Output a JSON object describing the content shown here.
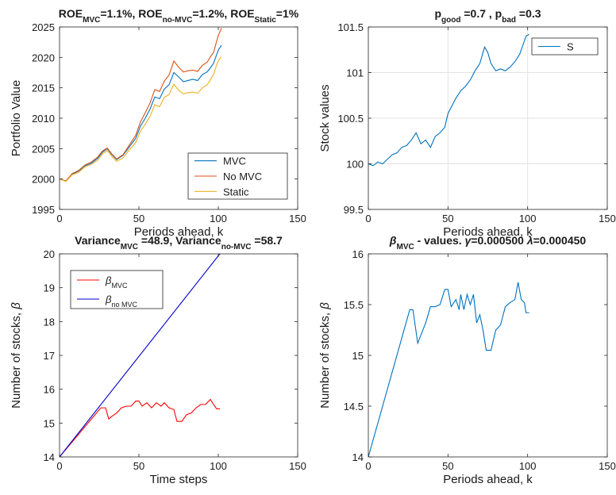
{
  "chart_data": [
    {
      "type": "line",
      "title": "ROE_MVC=1.1%, ROE_no-MVC=1.2%, ROE_Static=1%",
      "title_parts": [
        {
          "t": "ROE"
        },
        {
          "t": "MVC",
          "sub": true
        },
        {
          "t": "=1.1%, ROE"
        },
        {
          "t": "no-MVC",
          "sub": true
        },
        {
          "t": "=1.2%, ROE"
        },
        {
          "t": "Static",
          "sub": true
        },
        {
          "t": "=1%"
        }
      ],
      "xlabel": "Periods ahead, k",
      "ylabel": "Portfolio Value",
      "xlim": [
        0,
        150
      ],
      "ylim": [
        1995,
        2025
      ],
      "xticks": [
        0,
        50,
        100,
        150
      ],
      "yticks": [
        1995,
        2000,
        2005,
        2010,
        2015,
        2020,
        2025
      ],
      "grid": false,
      "legend_position": "bottom-right",
      "series": [
        {
          "name": "MVC",
          "color": "#0072BD",
          "x": [
            0,
            4,
            8,
            12,
            16,
            20,
            24,
            27,
            30,
            33,
            36,
            40,
            44,
            48,
            51,
            54,
            57,
            60,
            63,
            66,
            69,
            72,
            75,
            78,
            81,
            84,
            87,
            90,
            93,
            95,
            97,
            99,
            100,
            101,
            102
          ],
          "values": [
            2000,
            1999.7,
            2000.8,
            2001.3,
            2002.2,
            2002.6,
            2003.4,
            2004.4,
            2005,
            2004,
            2003.2,
            2003.9,
            2005.3,
            2006.7,
            2008.7,
            2010,
            2011.5,
            2013.5,
            2013.2,
            2014.8,
            2015.5,
            2017.5,
            2016.8,
            2016,
            2016.2,
            2016.4,
            2016.2,
            2017.2,
            2017.6,
            2018.3,
            2019,
            2020.5,
            2021.2,
            2021.6,
            2022
          ]
        },
        {
          "name": "No MVC",
          "color": "#D95319",
          "x": [
            0,
            4,
            8,
            12,
            16,
            20,
            24,
            27,
            30,
            33,
            36,
            40,
            44,
            48,
            51,
            54,
            57,
            60,
            63,
            66,
            69,
            72,
            75,
            78,
            81,
            84,
            87,
            90,
            93,
            95,
            97,
            99,
            100,
            101,
            102
          ],
          "values": [
            2000,
            1999.7,
            2000.9,
            2001.4,
            2002.3,
            2002.8,
            2003.6,
            2004.6,
            2005.1,
            2004.1,
            2003.3,
            2004,
            2005.6,
            2007.2,
            2009.4,
            2010.9,
            2012.5,
            2014.7,
            2014.4,
            2016.1,
            2017.1,
            2019.4,
            2018.4,
            2017.6,
            2017.8,
            2017.9,
            2017.7,
            2018.7,
            2019.2,
            2020.1,
            2020.8,
            2022.7,
            2023.6,
            2024.2,
            2024.8
          ]
        },
        {
          "name": "Static",
          "color": "#EDB120",
          "x": [
            0,
            4,
            8,
            12,
            16,
            20,
            24,
            27,
            30,
            33,
            36,
            40,
            44,
            48,
            51,
            54,
            57,
            60,
            63,
            66,
            69,
            72,
            75,
            78,
            81,
            84,
            87,
            90,
            93,
            95,
            97,
            99,
            100,
            101,
            102
          ],
          "values": [
            2000,
            1999.6,
            2000.7,
            2001.1,
            2002,
            2002.4,
            2003.1,
            2004.1,
            2004.7,
            2003.7,
            2002.9,
            2003.5,
            2004.8,
            2006,
            2007.9,
            2009,
            2010.3,
            2012.2,
            2011.9,
            2013.4,
            2013.9,
            2015.6,
            2014.6,
            2014,
            2014.2,
            2014.3,
            2014.1,
            2015,
            2015.5,
            2016.3,
            2017.2,
            2018.8,
            2019.4,
            2019.8,
            2020.1
          ]
        }
      ]
    },
    {
      "type": "line",
      "title": "p_good =0.7 , p_bad =0.3",
      "title_parts": [
        {
          "t": "p"
        },
        {
          "t": "good",
          "sub": true
        },
        {
          "t": " =0.7 , p"
        },
        {
          "t": "bad",
          "sub": true
        },
        {
          "t": " =0.3"
        }
      ],
      "xlabel": "Periods ahead, k",
      "ylabel": "Stock values",
      "xlim": [
        0,
        150
      ],
      "ylim": [
        99.5,
        101.5
      ],
      "xticks": [
        0,
        50,
        100,
        150
      ],
      "yticks": [
        99.5,
        100,
        100.5,
        101,
        101.5
      ],
      "grid": true,
      "legend_position": "top-right",
      "series": [
        {
          "name": "S",
          "color": "#0072BD",
          "x": [
            0,
            3,
            6,
            9,
            12,
            15,
            18,
            21,
            24,
            27,
            30,
            33,
            36,
            39,
            42,
            45,
            48,
            50,
            52,
            55,
            58,
            61,
            64,
            67,
            70,
            73,
            75,
            77,
            80,
            83,
            86,
            89,
            92,
            95,
            97,
            99,
            101
          ],
          "values": [
            100,
            99.98,
            100.02,
            100,
            100.05,
            100.1,
            100.12,
            100.18,
            100.2,
            100.26,
            100.34,
            100.22,
            100.26,
            100.18,
            100.3,
            100.34,
            100.4,
            100.55,
            100.62,
            100.72,
            100.8,
            100.85,
            100.92,
            101.02,
            101.1,
            101.28,
            101.22,
            101.1,
            101.02,
            101.04,
            101.02,
            101.06,
            101.12,
            101.2,
            101.3,
            101.4,
            101.42
          ]
        }
      ]
    },
    {
      "type": "line",
      "title": "Variance_MVC =48.9, Variance_no-MVC =58.7",
      "title_parts": [
        {
          "t": "Variance"
        },
        {
          "t": "MVC",
          "sub": true
        },
        {
          "t": " =48.9, Variance"
        },
        {
          "t": "no-MVC",
          "sub": true
        },
        {
          "t": " =58.7"
        }
      ],
      "xlabel": "Time steps",
      "ylabel": "Number of stocks, β",
      "xlim": [
        0,
        150
      ],
      "ylim": [
        14,
        20
      ],
      "xticks": [
        0,
        50,
        100,
        150
      ],
      "yticks": [
        14,
        15,
        16,
        17,
        18,
        19,
        20
      ],
      "grid": false,
      "legend_position": "top-left",
      "series": [
        {
          "name": "β_MVC",
          "name_parts": [
            {
              "t": "β"
            },
            {
              "t": "MVC",
              "sub": true
            }
          ],
          "color": "#FF0000",
          "x": [
            0,
            26,
            29,
            31,
            33,
            36,
            39,
            42,
            45,
            48,
            50,
            52,
            55,
            58,
            61,
            64,
            66,
            69,
            72,
            74,
            77,
            80,
            83,
            86,
            89,
            92,
            95,
            97,
            99,
            101
          ],
          "values": [
            14,
            15.45,
            15.45,
            15.12,
            15.2,
            15.3,
            15.45,
            15.5,
            15.5,
            15.65,
            15.65,
            15.5,
            15.6,
            15.45,
            15.6,
            15.5,
            15.6,
            15.45,
            15.4,
            15.05,
            15.05,
            15.25,
            15.3,
            15.45,
            15.55,
            15.55,
            15.7,
            15.55,
            15.42,
            15.42
          ]
        },
        {
          "name": "β_no MVC",
          "name_parts": [
            {
              "t": "β"
            },
            {
              "t": "no MVC",
              "sub": true
            }
          ],
          "color": "#0000CD",
          "x": [
            0,
            101
          ],
          "values": [
            14,
            20
          ]
        }
      ]
    },
    {
      "type": "line",
      "title": "β_MVC - values. γ=0.000500 λ=0.000450",
      "title_parts": [
        {
          "t": "β",
          "italic": true
        },
        {
          "t": "MVC",
          "sub": true
        },
        {
          "t": " - values. "
        },
        {
          "t": "γ",
          "italic": true
        },
        {
          "t": "=0.000500 "
        },
        {
          "t": "λ",
          "italic": true
        },
        {
          "t": "=0.000450"
        }
      ],
      "xlabel": "Periods ahead, k",
      "ylabel": "Number of stocks, β",
      "xlim": [
        0,
        150
      ],
      "ylim": [
        14,
        16
      ],
      "xticks": [
        0,
        50,
        100,
        150
      ],
      "yticks": [
        14,
        14.5,
        15,
        15.5,
        16
      ],
      "grid": false,
      "legend_position": "none",
      "series": [
        {
          "color": "#0072BD",
          "x": [
            0,
            26,
            28,
            31,
            33,
            36,
            39,
            42,
            45,
            48,
            50,
            52,
            55,
            57,
            58,
            60,
            62,
            64,
            66,
            68,
            70,
            72,
            74,
            77,
            80,
            83,
            86,
            89,
            92,
            94,
            96,
            98,
            99,
            101
          ],
          "values": [
            14,
            15.45,
            15.45,
            15.12,
            15.2,
            15.32,
            15.48,
            15.48,
            15.5,
            15.65,
            15.65,
            15.48,
            15.55,
            15.45,
            15.6,
            15.45,
            15.6,
            15.5,
            15.6,
            15.32,
            15.4,
            15.25,
            15.05,
            15.05,
            15.25,
            15.3,
            15.48,
            15.52,
            15.55,
            15.72,
            15.55,
            15.52,
            15.42,
            15.42
          ]
        }
      ]
    }
  ]
}
